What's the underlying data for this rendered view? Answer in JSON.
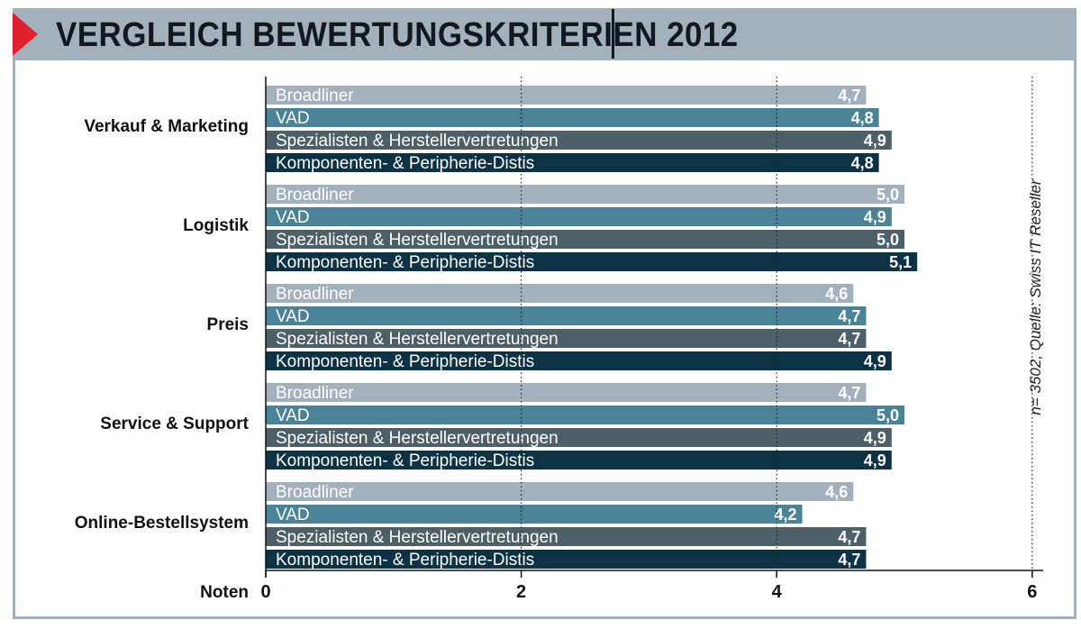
{
  "title": "VERGLEICH BEWERTUNGSKRITERIEN 2012",
  "source_note": "n= 3502, Quelle: Swiss IT Reseller",
  "colors": {
    "Broadliner": "#a3b1bc",
    "VAD": "#4a8396",
    "Spezialisten & Herstellervertretungen": "#4d5f67",
    "Komponenten- & Peripherie-Distis": "#0d3244",
    "title_bar": "#a3b1bc",
    "accent": "#e0202c"
  },
  "chart_data": {
    "type": "bar",
    "orientation": "horizontal",
    "title": "VERGLEICH BEWERTUNGSKRITERIEN 2012",
    "xlabel": "Noten",
    "xlim": [
      0,
      6
    ],
    "xticks": [
      "0",
      "2",
      "4",
      "6"
    ],
    "grid": "dotted vertical lines at 2, 4, 6",
    "categories": [
      "Verkauf & Marketing",
      "Logistik",
      "Preis",
      "Service & Support",
      "Online-Bestellsystem"
    ],
    "series": [
      {
        "name": "Broadliner",
        "values": [
          4.7,
          5.0,
          4.6,
          4.7,
          4.6
        ],
        "labels": [
          "4,7",
          "5,0",
          "4,6",
          "4,7",
          "4,6"
        ]
      },
      {
        "name": "VAD",
        "values": [
          4.8,
          4.9,
          4.7,
          5.0,
          4.2
        ],
        "labels": [
          "4,8",
          "4,9",
          "4,7",
          "5,0",
          "4,2"
        ]
      },
      {
        "name": "Spezialisten & Herstellervertretungen",
        "values": [
          4.9,
          5.0,
          4.7,
          4.9,
          4.7
        ],
        "labels": [
          "4,9",
          "5,0",
          "4,7",
          "4,9",
          "4,7"
        ]
      },
      {
        "name": "Komponenten- & Peripherie-Distis",
        "values": [
          4.8,
          5.1,
          4.9,
          4.9,
          4.7
        ],
        "labels": [
          "4,8",
          "5,1",
          "4,9",
          "4,9",
          "4,7"
        ]
      }
    ]
  }
}
